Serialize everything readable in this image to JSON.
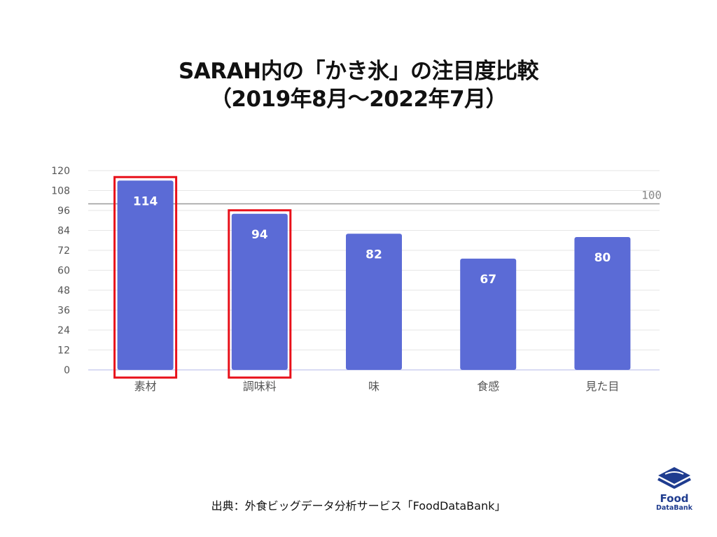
{
  "title": {
    "line1": "SARAH内の「かき氷」の注目度比較",
    "line2": "（2019年8月～2022年7月）"
  },
  "chart_data": {
    "type": "bar",
    "categories": [
      "素材",
      "調味料",
      "味",
      "食感",
      "見た目"
    ],
    "values": [
      114,
      94,
      82,
      67,
      80
    ],
    "data_labels": [
      "114",
      "94",
      "82",
      "67",
      "80"
    ],
    "highlighted": [
      "素材",
      "調味料"
    ],
    "ylim": [
      0,
      120
    ],
    "yticks": [
      "0",
      "12",
      "24",
      "36",
      "48",
      "60",
      "72",
      "84",
      "96",
      "108",
      "120"
    ],
    "reference_line": {
      "value": 100,
      "label": "100"
    },
    "grid": true,
    "xlabel": "",
    "ylabel": "",
    "colors": {
      "bar": "#5b6bd6",
      "highlight_box": "#e8101a",
      "grid": "#e6e6e6",
      "reference_line": "#999999",
      "axis_text": "#555555"
    }
  },
  "footer": {
    "source": "出典：外食ビッグデータ分析サービス「FoodDataBank」",
    "logo_word": "Food",
    "logo_subword": "DataBank"
  }
}
